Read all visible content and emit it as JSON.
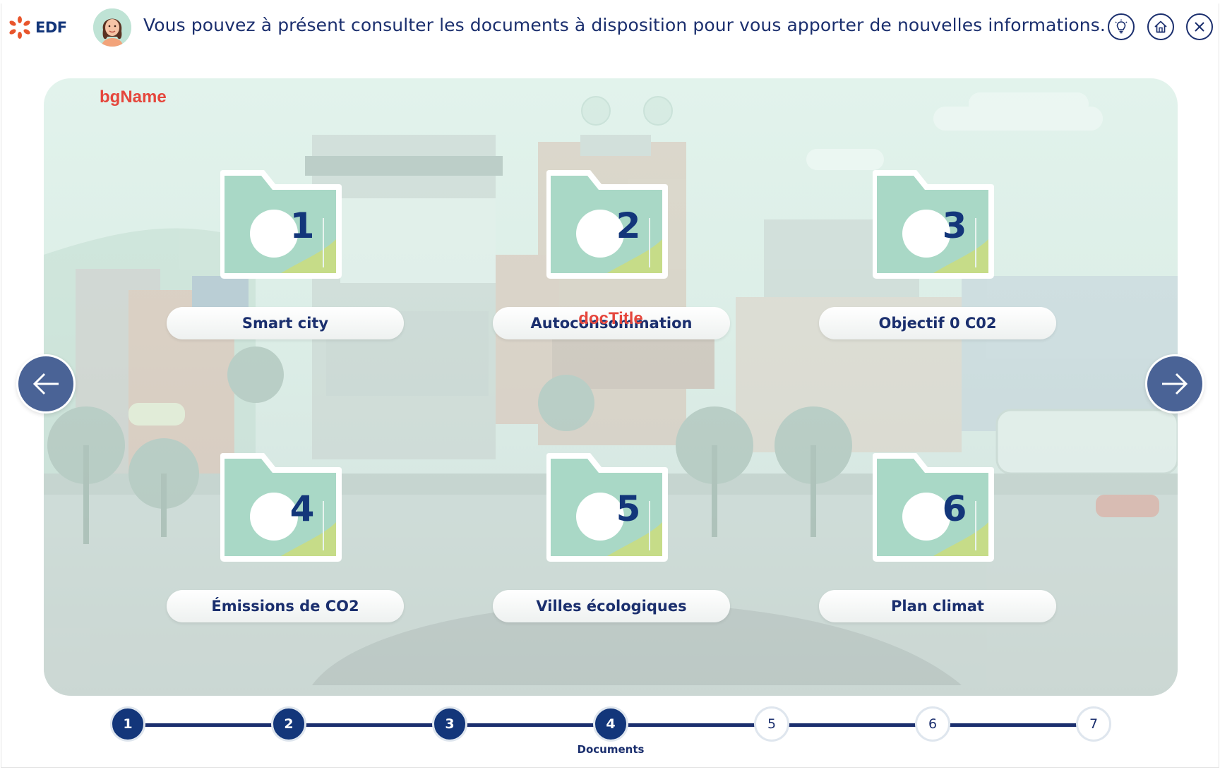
{
  "header": {
    "brand": "EDF",
    "message": "Vous pouvez à présent consulter les documents à disposition pour vous apporter de nouvelles informations.",
    "icons": [
      "lightbulb-icon",
      "home-icon",
      "close-icon"
    ]
  },
  "scene": {
    "bg_name": "bgName",
    "doc_title": "docTitle",
    "documents": [
      {
        "number": "1",
        "label": "Smart city"
      },
      {
        "number": "2",
        "label": "Autoconsommation"
      },
      {
        "number": "3",
        "label": "Objectif 0 C02"
      },
      {
        "number": "4",
        "label": "Émissions de CO2"
      },
      {
        "number": "5",
        "label": "Villes écologiques"
      },
      {
        "number": "6",
        "label": "Plan climat"
      }
    ],
    "nav": {
      "prev_icon": "arrow-left-icon",
      "next_icon": "arrow-right-icon"
    }
  },
  "stepper": {
    "steps": [
      {
        "number": "1",
        "state": "done"
      },
      {
        "number": "2",
        "state": "done"
      },
      {
        "number": "3",
        "state": "done"
      },
      {
        "number": "4",
        "state": "current",
        "caption": "Documents"
      },
      {
        "number": "5",
        "state": "todo"
      },
      {
        "number": "6",
        "state": "todo"
      },
      {
        "number": "7",
        "state": "todo"
      }
    ]
  },
  "colors": {
    "brand_navy": "#1b2f6e",
    "brand_orange": "#e8552c",
    "debug_red": "#e5463c",
    "nav_arrow": "#4a6396",
    "folder_green": "#a9d8c6"
  }
}
